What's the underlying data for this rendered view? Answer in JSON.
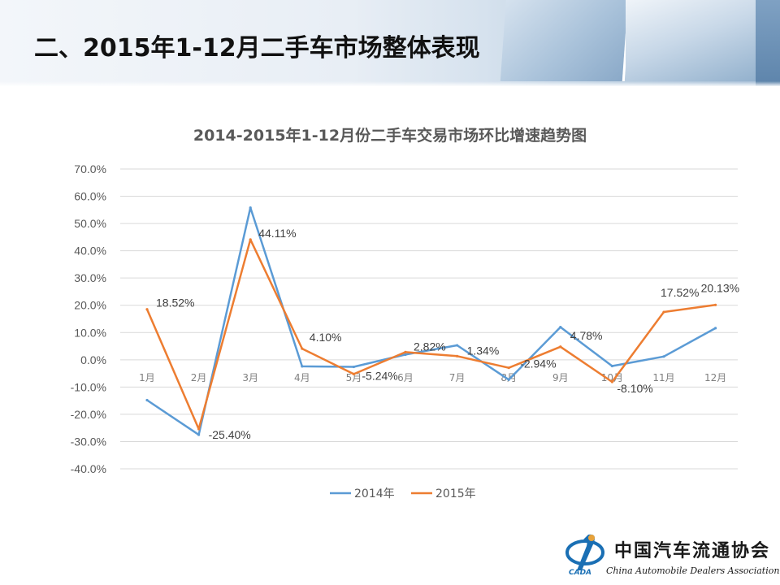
{
  "header": {
    "title": "二、2015年1-12月二手车市场整体表现"
  },
  "logo": {
    "name_zh": "中国汽车流通协会",
    "name_en": "China Automobile Dealers Association",
    "abbr": "CADA"
  },
  "colors": {
    "series_2014": "#5b9bd5",
    "series_2015": "#ed7d31",
    "grid": "#d9d9d9",
    "axis_text": "#595959"
  },
  "chart_data": {
    "type": "line",
    "title": "2014-2015年1-12月份二手车交易市场环比增速趋势图",
    "xlabel": "",
    "ylabel": "",
    "categories": [
      "1月",
      "2月",
      "3月",
      "4月",
      "5月",
      "6月",
      "7月",
      "8月",
      "9月",
      "10月",
      "11月",
      "12月"
    ],
    "ylim": [
      -40,
      70
    ],
    "yticks": [
      70,
      60,
      50,
      40,
      30,
      20,
      10,
      0,
      -10,
      -20,
      -30,
      -40
    ],
    "ytick_labels": [
      "70.0%",
      "60.0%",
      "50.0%",
      "40.0%",
      "30.0%",
      "20.0%",
      "10.0%",
      "0.0%",
      "-10.0%",
      "-20.0%",
      "-30.0%",
      "-40.0%"
    ],
    "grid": true,
    "legend": "bottom",
    "series": [
      {
        "name": "2014年",
        "values": [
          -14.8,
          -27.5,
          55.8,
          -2.4,
          -2.6,
          1.9,
          5.3,
          -7.3,
          12.0,
          -2.3,
          1.2,
          11.6
        ]
      },
      {
        "name": "2015年",
        "values": [
          18.52,
          -25.4,
          44.11,
          4.1,
          -5.24,
          2.82,
          1.34,
          -2.94,
          4.78,
          -8.1,
          17.52,
          20.13
        ],
        "labels": [
          "18.52%",
          "-25.40%",
          "44.11%",
          "4.10%",
          "-5.24%",
          "2.82%",
          "1.34%",
          "-2.94%",
          "4.78%",
          "-8.10%",
          "17.52%",
          "20.13%"
        ]
      }
    ]
  }
}
